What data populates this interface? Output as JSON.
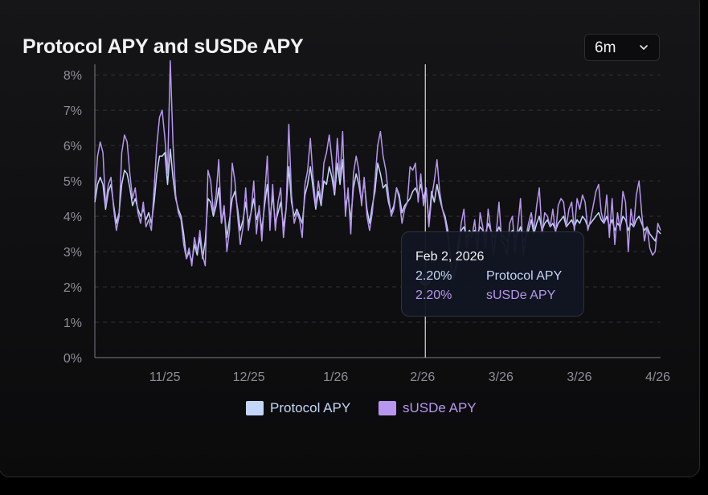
{
  "header": {
    "title": "Protocol APY and sUSDe APY",
    "range_selector": {
      "value": "6m",
      "icon": "chevron-down-icon"
    }
  },
  "colors": {
    "protocol": "#c3d6f7",
    "susde": "#b796ee",
    "grid": "#2f2f36",
    "axis": "#7b7b84"
  },
  "tooltip": {
    "date": "Feb 2, 2026",
    "rows": [
      {
        "value": "2.20%",
        "name": "Protocol APY"
      },
      {
        "value": "2.20%",
        "name": "sUSDe APY"
      }
    ]
  },
  "chart_data": {
    "type": "line",
    "x_start": "2025-10-07",
    "x_end": "2026-04-27",
    "yticks": [
      "0%",
      "1%",
      "2%",
      "3%",
      "4%",
      "5%",
      "6%",
      "7%",
      "8%"
    ],
    "ylim": [
      0,
      8.3
    ],
    "xticks": [
      {
        "label": "11/25",
        "date": "2025-11-01"
      },
      {
        "label": "12/25",
        "date": "2025-12-01"
      },
      {
        "label": "1/26",
        "date": "2026-01-01"
      },
      {
        "label": "2/26",
        "date": "2026-02-01"
      },
      {
        "label": "3/26",
        "date": "2026-03-01"
      },
      {
        "label": "3/26",
        "date": "2026-03-29"
      },
      {
        "label": "4/26",
        "date": "2026-04-26"
      }
    ],
    "hover_date": "2026-02-02",
    "hover_value": 2.2,
    "series": [
      {
        "name": "Protocol APY",
        "values": [
          4.4,
          4.9,
          5.1,
          4.9,
          4.2,
          4.7,
          4.9,
          4.3,
          3.8,
          4.1,
          4.9,
          5.3,
          5.2,
          4.8,
          4.3,
          4.5,
          4.2,
          4.0,
          4.2,
          3.9,
          4.1,
          3.8,
          4.4,
          5.2,
          5.7,
          5.7,
          5.8,
          4.9,
          5.9,
          5.1,
          4.5,
          4.2,
          4.0,
          3.5,
          2.8,
          3.0,
          2.7,
          3.2,
          2.9,
          3.4,
          2.8,
          3.3,
          4.5,
          4.4,
          4.0,
          4.3,
          4.8,
          3.8,
          4.2,
          3.4,
          3.9,
          4.5,
          4.7,
          4.2,
          3.6,
          3.9,
          4.4,
          3.8,
          4.1,
          4.5,
          3.9,
          4.2,
          3.6,
          4.3,
          4.9,
          3.9,
          4.6,
          3.8,
          4.1,
          4.4,
          3.7,
          4.2,
          5.4,
          4.4,
          4.0,
          4.2,
          4.0,
          3.8,
          4.6,
          4.9,
          5.4,
          4.8,
          4.2,
          4.7,
          4.3,
          5.0,
          4.9,
          5.4,
          5.1,
          4.6,
          5.5,
          4.9,
          5.6,
          4.3,
          4.6,
          3.9,
          4.8,
          5.2,
          4.9,
          4.4,
          5.0,
          4.2,
          3.8,
          4.3,
          4.7,
          5.5,
          5.2,
          4.8,
          4.9,
          4.4,
          4.1,
          4.3,
          4.8,
          4.6,
          4.1,
          4.3,
          4.4,
          4.5,
          4.7,
          4.8,
          4.6,
          4.9,
          4.5,
          4.8,
          3.8,
          4.7,
          4.4,
          4.9,
          4.5,
          4.2,
          4.0,
          3.6,
          2.7,
          2.2,
          2.6,
          3.3,
          3.6,
          3.7,
          3.4,
          3.6,
          3.5,
          3.6,
          3.5,
          3.7,
          3.6,
          3.5,
          3.8,
          3.6,
          3.4,
          3.5,
          3.7,
          3.5,
          3.4,
          3.3,
          3.5,
          3.6,
          3.4,
          3.5,
          3.7,
          3.3,
          3.4,
          3.6,
          3.9,
          3.5,
          3.8,
          4.0,
          3.6,
          3.8,
          3.9,
          3.7,
          3.8,
          3.6,
          3.8,
          3.9,
          4.0,
          3.7,
          3.8,
          3.9,
          3.7,
          3.9,
          3.8,
          4.0,
          3.9,
          3.7,
          3.8,
          3.9,
          4.0,
          4.1,
          3.9,
          3.8,
          4.0,
          3.7,
          3.9,
          3.6,
          3.8,
          3.7,
          4.0,
          3.9,
          3.6,
          3.8,
          3.7,
          3.9,
          4.0,
          3.8,
          3.6,
          3.7,
          3.5,
          3.4,
          3.3,
          3.6,
          3.5
        ],
        "color": "#c3d6f7"
      },
      {
        "name": "sUSDe APY",
        "values": [
          4.5,
          5.7,
          6.1,
          5.8,
          4.3,
          4.9,
          5.1,
          4.2,
          3.6,
          4.0,
          5.8,
          6.3,
          6.1,
          5.2,
          4.5,
          4.8,
          4.1,
          3.8,
          4.4,
          3.7,
          3.9,
          3.6,
          4.8,
          6.0,
          6.8,
          7.0,
          6.2,
          5.2,
          8.4,
          6.1,
          4.6,
          4.1,
          3.9,
          3.2,
          2.8,
          3.1,
          2.6,
          3.4,
          3.0,
          3.6,
          2.9,
          2.6,
          5.3,
          5.0,
          4.1,
          4.6,
          5.6,
          3.8,
          4.3,
          3.0,
          3.6,
          5.5,
          5.0,
          4.0,
          3.2,
          3.7,
          4.8,
          3.6,
          4.1,
          5.0,
          3.5,
          4.3,
          3.3,
          4.5,
          5.7,
          3.6,
          4.9,
          3.6,
          4.4,
          4.8,
          3.4,
          4.2,
          6.6,
          4.6,
          3.8,
          4.1,
          3.9,
          3.4,
          4.9,
          5.3,
          6.2,
          5.1,
          4.3,
          5.0,
          4.4,
          5.5,
          5.8,
          6.3,
          5.6,
          4.7,
          6.2,
          5.1,
          6.4,
          4.0,
          4.8,
          3.5,
          5.2,
          5.7,
          5.3,
          4.3,
          5.1,
          4.0,
          3.6,
          4.1,
          5.0,
          6.0,
          6.4,
          5.7,
          5.3,
          4.6,
          4.0,
          4.2,
          4.8,
          4.5,
          3.8,
          4.2,
          4.4,
          5.4,
          5.3,
          5.5,
          4.4,
          5.2,
          4.3,
          4.8,
          3.7,
          4.5,
          5.0,
          5.6,
          4.7,
          4.2,
          3.9,
          3.4,
          2.9,
          2.2,
          2.5,
          3.0,
          3.8,
          4.2,
          3.1,
          3.5,
          3.4,
          3.9,
          3.0,
          4.1,
          3.7,
          3.1,
          4.2,
          3.6,
          2.9,
          3.5,
          4.4,
          3.3,
          3.2,
          2.9,
          3.8,
          4.0,
          3.0,
          3.7,
          4.5,
          2.9,
          3.4,
          3.8,
          4.1,
          3.6,
          4.3,
          4.8,
          3.5,
          4.1,
          4.0,
          3.7,
          4.2,
          3.5,
          4.3,
          4.5,
          4.4,
          3.7,
          4.2,
          4.4,
          3.6,
          4.5,
          4.2,
          4.6,
          4.4,
          3.6,
          3.9,
          4.3,
          4.7,
          4.9,
          4.1,
          3.8,
          4.6,
          3.4,
          4.5,
          3.2,
          4.1,
          3.6,
          4.7,
          4.4,
          3.0,
          4.2,
          3.7,
          4.6,
          5.0,
          4.1,
          3.3,
          3.7,
          3.1,
          2.9,
          3.0,
          3.8,
          3.6
        ],
        "color": "#b796ee"
      }
    ]
  },
  "legend": [
    {
      "label": "Protocol APY"
    },
    {
      "label": "sUSDe APY"
    }
  ]
}
